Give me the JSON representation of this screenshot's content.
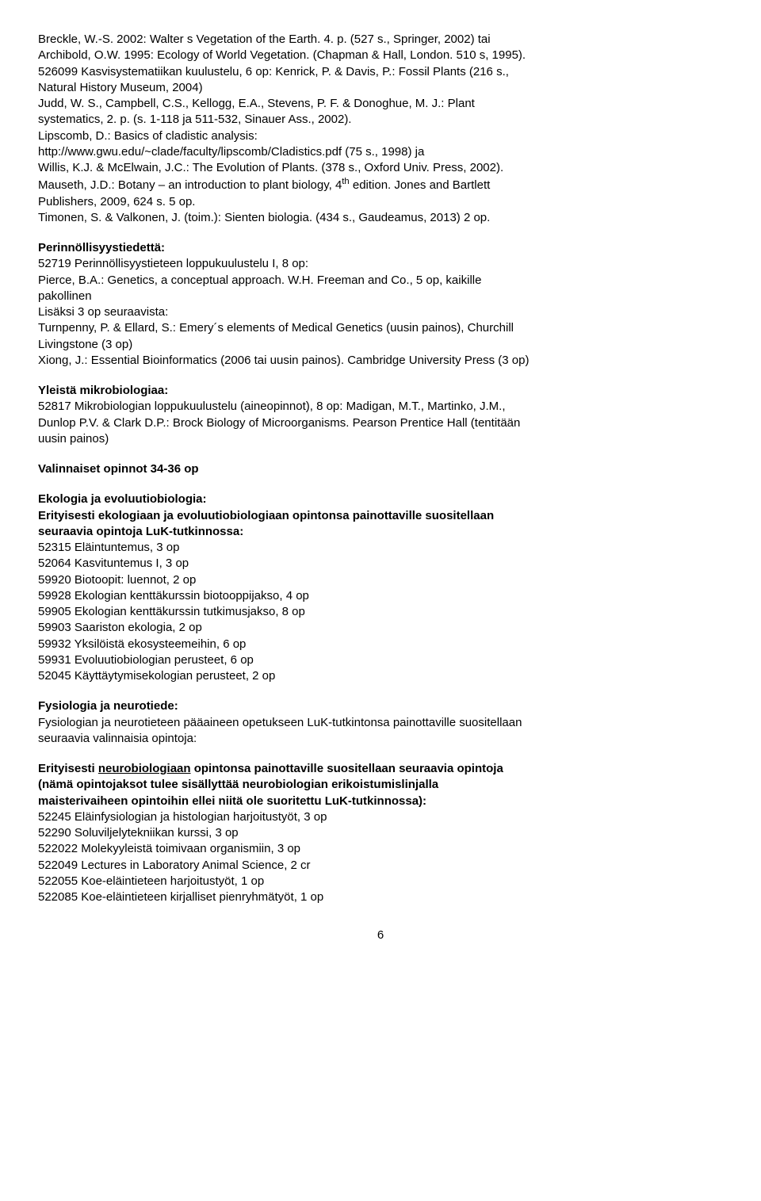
{
  "para1": {
    "lines": [
      "Breckle, W.-S. 2002: Walter s Vegetation of the Earth. 4. p. (527 s., Springer, 2002) tai",
      "Archibold, O.W. 1995: Ecology of World Vegetation. (Chapman & Hall, London. 510 s, 1995).",
      "526099 Kasvisystematiikan kuulustelu, 6 op: Kenrick, P. & Davis, P.: Fossil Plants (216 s.,",
      "Natural History Museum, 2004)",
      "Judd, W. S., Campbell, C.S., Kellogg, E.A., Stevens, P. F. & Donoghue, M. J.: Plant",
      "systematics, 2. p. (s. 1-118 ja 511-532, Sinauer Ass., 2002).",
      "Lipscomb, D.: Basics of cladistic analysis:",
      "http://www.gwu.edu/~clade/faculty/lipscomb/Cladistics.pdf (75 s., 1998) ja",
      "Willis, K.J. & McElwain, J.C.: The Evolution of Plants. (378 s., Oxford Univ. Press, 2002).",
      "Mauseth, J.D.: Botany – an introduction to plant biology, 4__SUP_TH__ edition. Jones and Bartlett",
      "Publishers, 2009, 624 s. 5 op.",
      "Timonen, S. & Valkonen, J. (toim.): Sienten biologia. (434 s., Gaudeamus, 2013) 2 op."
    ]
  },
  "para2": {
    "heading": "Perinnöllisyystiedettä:",
    "lines": [
      "52719 Perinnöllisyystieteen loppukuulustelu I, 8 op:",
      "Pierce, B.A.: Genetics, a conceptual approach. W.H. Freeman and Co., 5 op, kaikille",
      "pakollinen",
      "Lisäksi 3 op seuraavista:",
      "Turnpenny, P. & Ellard, S.: Emery´s elements of Medical Genetics (uusin painos), Churchill",
      "Livingstone (3 op)",
      "Xiong, J.: Essential Bioinformatics (2006 tai uusin painos). Cambridge University Press (3 op)"
    ]
  },
  "para3": {
    "heading": "Yleistä mikrobiologiaa:",
    "lines": [
      "52817 Mikrobiologian loppukuulustelu (aineopinnot), 8 op: Madigan, M.T., Martinko, J.M.,",
      "Dunlop P.V. & Clark D.P.: Brock Biology of Microorganisms. Pearson Prentice Hall (tentitään",
      "uusin painos)"
    ]
  },
  "para4": {
    "heading": "Valinnaiset opinnot 34-36 op"
  },
  "para5": {
    "heading": "Ekologia ja evoluutiobiologia:",
    "subheading": [
      "Erityisesti ekologiaan ja evoluutiobiologiaan opintonsa painottaville suositellaan",
      "seuraavia opintoja LuK-tutkinnossa:"
    ],
    "items": [
      "52315 Eläintuntemus, 3 op",
      "52064 Kasvituntemus I, 3 op",
      "59920 Biotoopit: luennot, 2 op",
      "59928 Ekologian kenttäkurssin biotooppijakso, 4 op",
      "59905 Ekologian kenttäkurssin tutkimusjakso, 8 op",
      "59903 Saariston ekologia, 2 op",
      "59932 Yksilöistä ekosysteemeihin, 6 op",
      "59931 Evoluutiobiologian perusteet, 6 op",
      "52045 Käyttäytymisekologian perusteet, 2 op"
    ]
  },
  "para6": {
    "heading": "Fysiologia ja neurotiede:",
    "lines": [
      "Fysiologian ja neurotieteen pääaineen opetukseen LuK-tutkintonsa painottaville suositellaan",
      "seuraavia valinnaisia opintoja:"
    ]
  },
  "para7": {
    "pre": "Erityisesti ",
    "ul": "neurobiologiaan",
    "post": " opintonsa painottaville suositellaan seuraavia opintoja",
    "bold_lines": [
      "(nämä opintojaksot tulee sisällyttää neurobiologian erikoistumislinjalla",
      "maisterivaiheen opintoihin ellei niitä ole suoritettu LuK-tutkinnossa):"
    ],
    "items": [
      "52245 Eläinfysiologian ja histologian harjoitustyöt, 3 op",
      "52290 Soluviljelytekniikan kurssi, 3 op",
      "522022 Molekyyleistä toimivaan organismiin, 3 op",
      "522049 Lectures in Laboratory Animal Science, 2 cr",
      "522055 Koe-eläintieteen harjoitustyöt, 1 op",
      "522085 Koe-eläintieteen kirjalliset pienryhmätyöt, 1 op"
    ]
  },
  "pageNumber": "6"
}
